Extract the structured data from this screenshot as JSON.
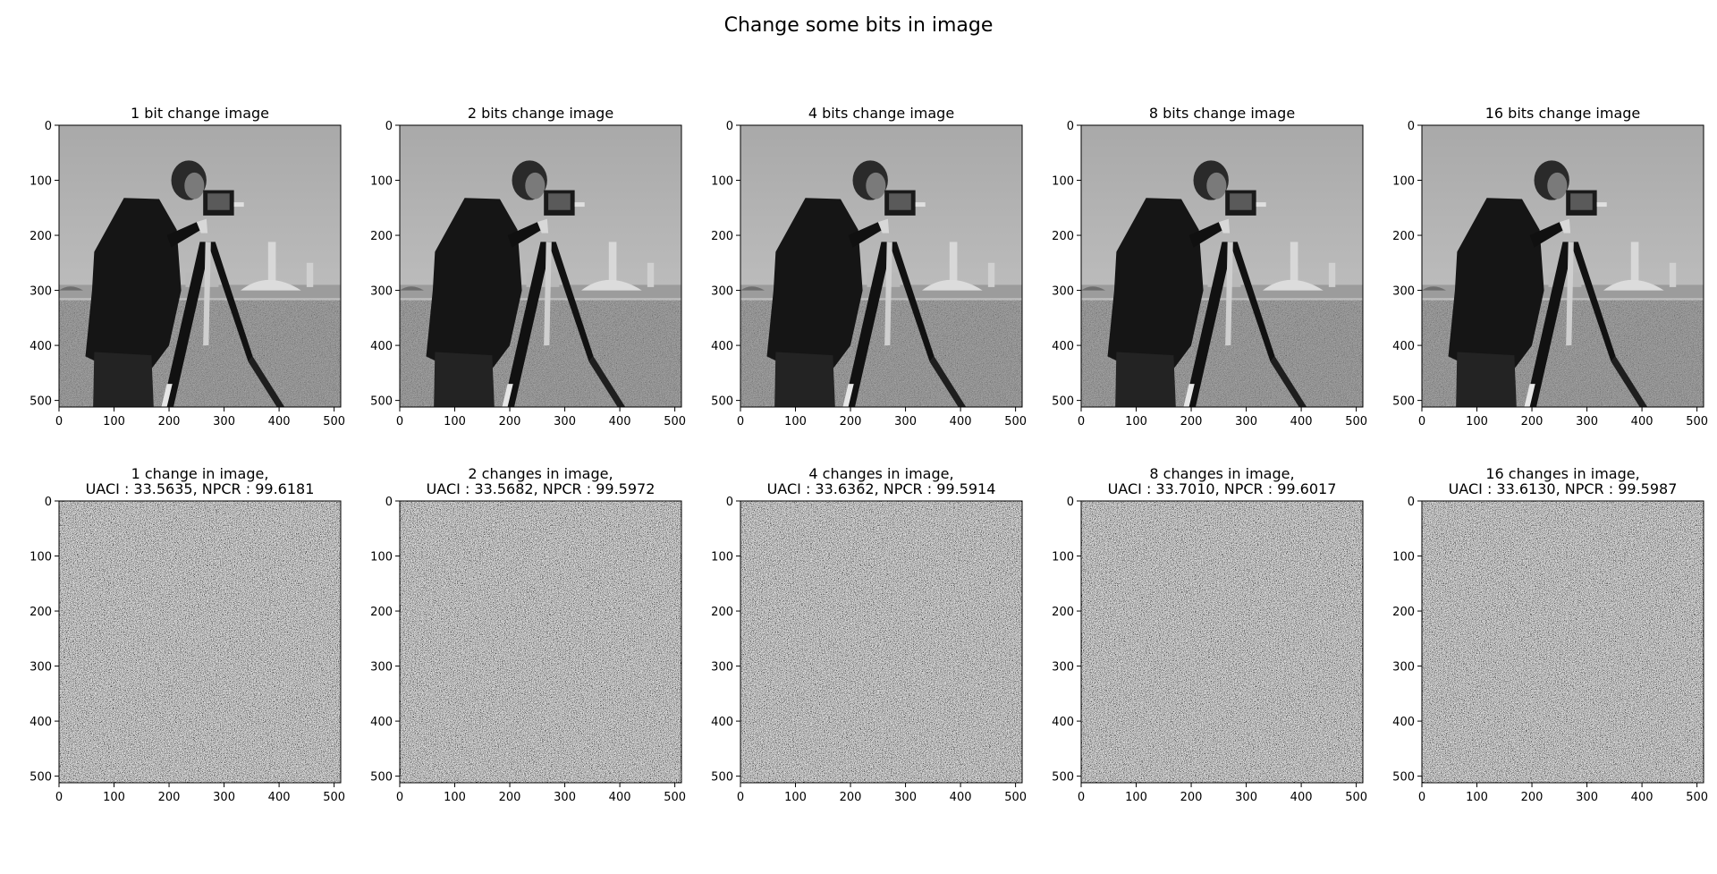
{
  "figure": {
    "title": "Change some bits in image"
  },
  "chart_data": [
    {
      "type": "heatmap",
      "content": "cameraman photograph",
      "title": [
        "1 bit change image"
      ],
      "xlim": [
        0,
        512
      ],
      "ylim": [
        512,
        0
      ],
      "xticks": [
        0,
        100,
        200,
        300,
        400,
        500
      ],
      "yticks": [
        0,
        100,
        200,
        300,
        400,
        500
      ],
      "row": 0,
      "col": 0
    },
    {
      "type": "heatmap",
      "content": "cameraman photograph",
      "title": [
        "2 bits change image"
      ],
      "xlim": [
        0,
        512
      ],
      "ylim": [
        512,
        0
      ],
      "xticks": [
        0,
        100,
        200,
        300,
        400,
        500
      ],
      "yticks": [
        0,
        100,
        200,
        300,
        400,
        500
      ],
      "row": 0,
      "col": 1
    },
    {
      "type": "heatmap",
      "content": "cameraman photograph",
      "title": [
        "4 bits change image"
      ],
      "xlim": [
        0,
        512
      ],
      "ylim": [
        512,
        0
      ],
      "xticks": [
        0,
        100,
        200,
        300,
        400,
        500
      ],
      "yticks": [
        0,
        100,
        200,
        300,
        400,
        500
      ],
      "row": 0,
      "col": 2
    },
    {
      "type": "heatmap",
      "content": "cameraman photograph",
      "title": [
        "8 bits change image"
      ],
      "xlim": [
        0,
        512
      ],
      "ylim": [
        512,
        0
      ],
      "xticks": [
        0,
        100,
        200,
        300,
        400,
        500
      ],
      "yticks": [
        0,
        100,
        200,
        300,
        400,
        500
      ],
      "row": 0,
      "col": 3
    },
    {
      "type": "heatmap",
      "content": "cameraman photograph",
      "title": [
        "16 bits change image"
      ],
      "xlim": [
        0,
        512
      ],
      "ylim": [
        512,
        0
      ],
      "xticks": [
        0,
        100,
        200,
        300,
        400,
        500
      ],
      "yticks": [
        0,
        100,
        200,
        300,
        400,
        500
      ],
      "row": 0,
      "col": 4
    },
    {
      "type": "heatmap",
      "content": "random noise",
      "title": [
        "1 change in image,",
        "UACI : 33.5635, NPCR : 99.6181"
      ],
      "uaci": 33.5635,
      "npcr": 99.6181,
      "xlim": [
        0,
        512
      ],
      "ylim": [
        512,
        0
      ],
      "xticks": [
        0,
        100,
        200,
        300,
        400,
        500
      ],
      "yticks": [
        0,
        100,
        200,
        300,
        400,
        500
      ],
      "row": 1,
      "col": 0
    },
    {
      "type": "heatmap",
      "content": "random noise",
      "title": [
        "2 changes in image,",
        "UACI : 33.5682, NPCR : 99.5972"
      ],
      "uaci": 33.5682,
      "npcr": 99.5972,
      "xlim": [
        0,
        512
      ],
      "ylim": [
        512,
        0
      ],
      "xticks": [
        0,
        100,
        200,
        300,
        400,
        500
      ],
      "yticks": [
        0,
        100,
        200,
        300,
        400,
        500
      ],
      "row": 1,
      "col": 1
    },
    {
      "type": "heatmap",
      "content": "random noise",
      "title": [
        "4 changes in image,",
        "UACI : 33.6362, NPCR : 99.5914"
      ],
      "uaci": 33.6362,
      "npcr": 99.5914,
      "xlim": [
        0,
        512
      ],
      "ylim": [
        512,
        0
      ],
      "xticks": [
        0,
        100,
        200,
        300,
        400,
        500
      ],
      "yticks": [
        0,
        100,
        200,
        300,
        400,
        500
      ],
      "row": 1,
      "col": 2
    },
    {
      "type": "heatmap",
      "content": "random noise",
      "title": [
        "8 changes in image,",
        "UACI : 33.7010, NPCR : 99.6017"
      ],
      "uaci": 33.701,
      "npcr": 99.6017,
      "xlim": [
        0,
        512
      ],
      "ylim": [
        512,
        0
      ],
      "xticks": [
        0,
        100,
        200,
        300,
        400,
        500
      ],
      "yticks": [
        0,
        100,
        200,
        300,
        400,
        500
      ],
      "row": 1,
      "col": 3
    },
    {
      "type": "heatmap",
      "content": "random noise",
      "title": [
        "16 changes in image,",
        "UACI : 33.6130, NPCR : 99.5987"
      ],
      "uaci": 33.613,
      "npcr": 99.5987,
      "xlim": [
        0,
        512
      ],
      "ylim": [
        512,
        0
      ],
      "xticks": [
        0,
        100,
        200,
        300,
        400,
        500
      ],
      "yticks": [
        0,
        100,
        200,
        300,
        400,
        500
      ],
      "row": 1,
      "col": 4
    }
  ]
}
